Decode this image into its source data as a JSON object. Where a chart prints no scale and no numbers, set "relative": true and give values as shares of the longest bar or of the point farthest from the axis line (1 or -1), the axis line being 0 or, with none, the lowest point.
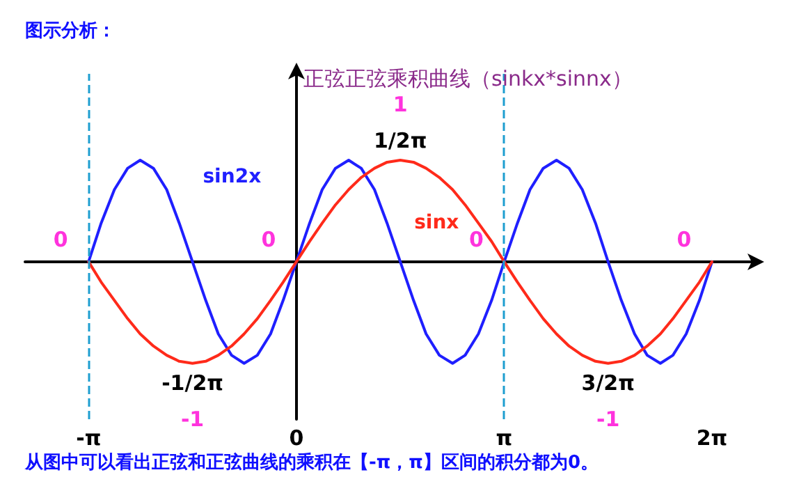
{
  "chart_data": {
    "type": "line",
    "title": "正弦正弦乘积曲线（sinkx*sinnx）",
    "relative": true,
    "x": [
      -3.14,
      -2.95,
      -2.75,
      -2.55,
      -2.36,
      -2.16,
      -1.96,
      -1.77,
      -1.57,
      -1.37,
      -1.18,
      -0.98,
      -0.79,
      -0.59,
      -0.39,
      -0.2,
      0,
      0.2,
      0.39,
      0.59,
      0.79,
      0.98,
      1.18,
      1.37,
      1.57,
      1.77,
      1.96,
      2.16,
      2.36,
      2.55,
      2.75,
      2.95,
      3.14,
      3.34,
      3.53,
      3.73,
      3.93,
      4.12,
      4.32,
      4.52,
      4.71,
      4.91,
      5.11,
      5.3,
      5.5,
      5.69,
      5.89,
      6.09,
      6.28
    ],
    "series": [
      {
        "name": "sin2x",
        "color": "#1f1fff",
        "values": [
          0,
          0.38,
          0.71,
          0.92,
          1,
          0.92,
          0.71,
          0.38,
          0,
          -0.38,
          -0.71,
          -0.92,
          -1,
          -0.92,
          -0.71,
          -0.38,
          0,
          0.38,
          0.71,
          0.92,
          1,
          0.92,
          0.71,
          0.38,
          0,
          -0.38,
          -0.71,
          -0.92,
          -1,
          -0.92,
          -0.71,
          -0.38,
          0,
          0.38,
          0.71,
          0.92,
          1,
          0.92,
          0.71,
          0.38,
          0,
          -0.38,
          -0.71,
          -0.92,
          -1,
          -0.92,
          -0.71,
          -0.38,
          0
        ]
      },
      {
        "name": "sinx",
        "color": "#ff2a1a",
        "values": [
          0,
          -0.2,
          -0.38,
          -0.56,
          -0.71,
          -0.83,
          -0.92,
          -0.98,
          -1,
          -0.98,
          -0.92,
          -0.83,
          -0.71,
          -0.56,
          -0.38,
          -0.2,
          0,
          0.2,
          0.38,
          0.56,
          0.71,
          0.83,
          0.92,
          0.98,
          1,
          0.98,
          0.92,
          0.83,
          0.71,
          0.56,
          0.38,
          0.2,
          0,
          -0.2,
          -0.38,
          -0.56,
          -0.71,
          -0.83,
          -0.92,
          -0.98,
          -1,
          -0.98,
          -0.92,
          -0.83,
          -0.71,
          -0.56,
          -0.38,
          -0.2,
          0
        ]
      }
    ],
    "xlim": [
      -4.1,
      6.9
    ],
    "xticks": [
      {
        "value": -3.14,
        "label": "-π"
      },
      {
        "value": 0,
        "label": "0"
      },
      {
        "value": 3.14,
        "label": "π"
      },
      {
        "value": 6.28,
        "label": "2π"
      }
    ],
    "tick_labels": "x",
    "grid": false,
    "legend": false,
    "marker": "none",
    "line_style": "solid",
    "ref_lines": [
      {
        "axis": "x",
        "value": -3.14,
        "color": "#1e9ed0",
        "line_style": "dashed"
      },
      {
        "axis": "x",
        "value": 3.14,
        "color": "#1e9ed0",
        "line_style": "dashed"
      }
    ],
    "annotations": [
      "图示分析：",
      {
        "text": "1/2π",
        "x": 1.57,
        "y": 1
      },
      {
        "text": "1",
        "x": 1.57,
        "y": 1
      },
      {
        "text": "-1/2π",
        "x": -1.57,
        "y": -1
      },
      {
        "text": "-1",
        "x": -1.57,
        "y": -1
      },
      {
        "text": "3/2π",
        "x": 4.71,
        "y": -1
      },
      {
        "text": "-1",
        "x": 4.71,
        "y": -1
      },
      {
        "text": "0",
        "x": -3.14,
        "y": 0
      },
      {
        "text": "0",
        "x": 0,
        "y": 0
      },
      {
        "text": "0",
        "x": 3.14,
        "y": 0
      },
      {
        "text": "0",
        "x": 6.28,
        "y": 0
      },
      "从图中可以看出正弦和正弦曲线的乘积在【-π，π】区间的积分都为0。"
    ]
  }
}
